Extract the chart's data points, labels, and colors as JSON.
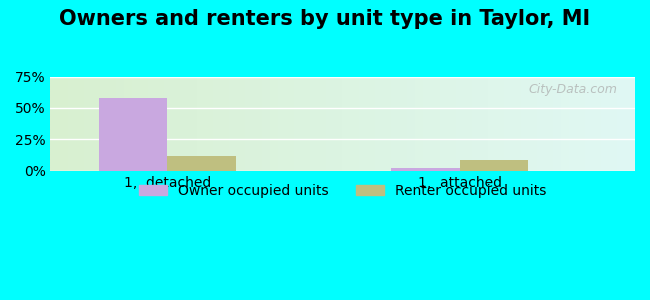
{
  "title": "Owners and renters by unit type in Taylor, MI",
  "categories": [
    "1,  detached",
    "1,  attached"
  ],
  "owner_values": [
    58.0,
    2.0
  ],
  "renter_values": [
    12.0,
    9.0
  ],
  "owner_color": "#c9a8e0",
  "renter_color": "#bfbf80",
  "ylim": [
    0,
    75
  ],
  "yticks": [
    0,
    25,
    50,
    75
  ],
  "yticklabels": [
    "0%",
    "25%",
    "50%",
    "75%"
  ],
  "bar_width": 0.35,
  "watermark": "City-Data.com",
  "legend_owner": "Owner occupied units",
  "legend_renter": "Renter occupied units",
  "title_fontsize": 15,
  "tick_fontsize": 10,
  "legend_fontsize": 10,
  "outer_bg": "#00ffff",
  "grad_left": "#d8f0d0",
  "grad_right": "#e0f8f4"
}
